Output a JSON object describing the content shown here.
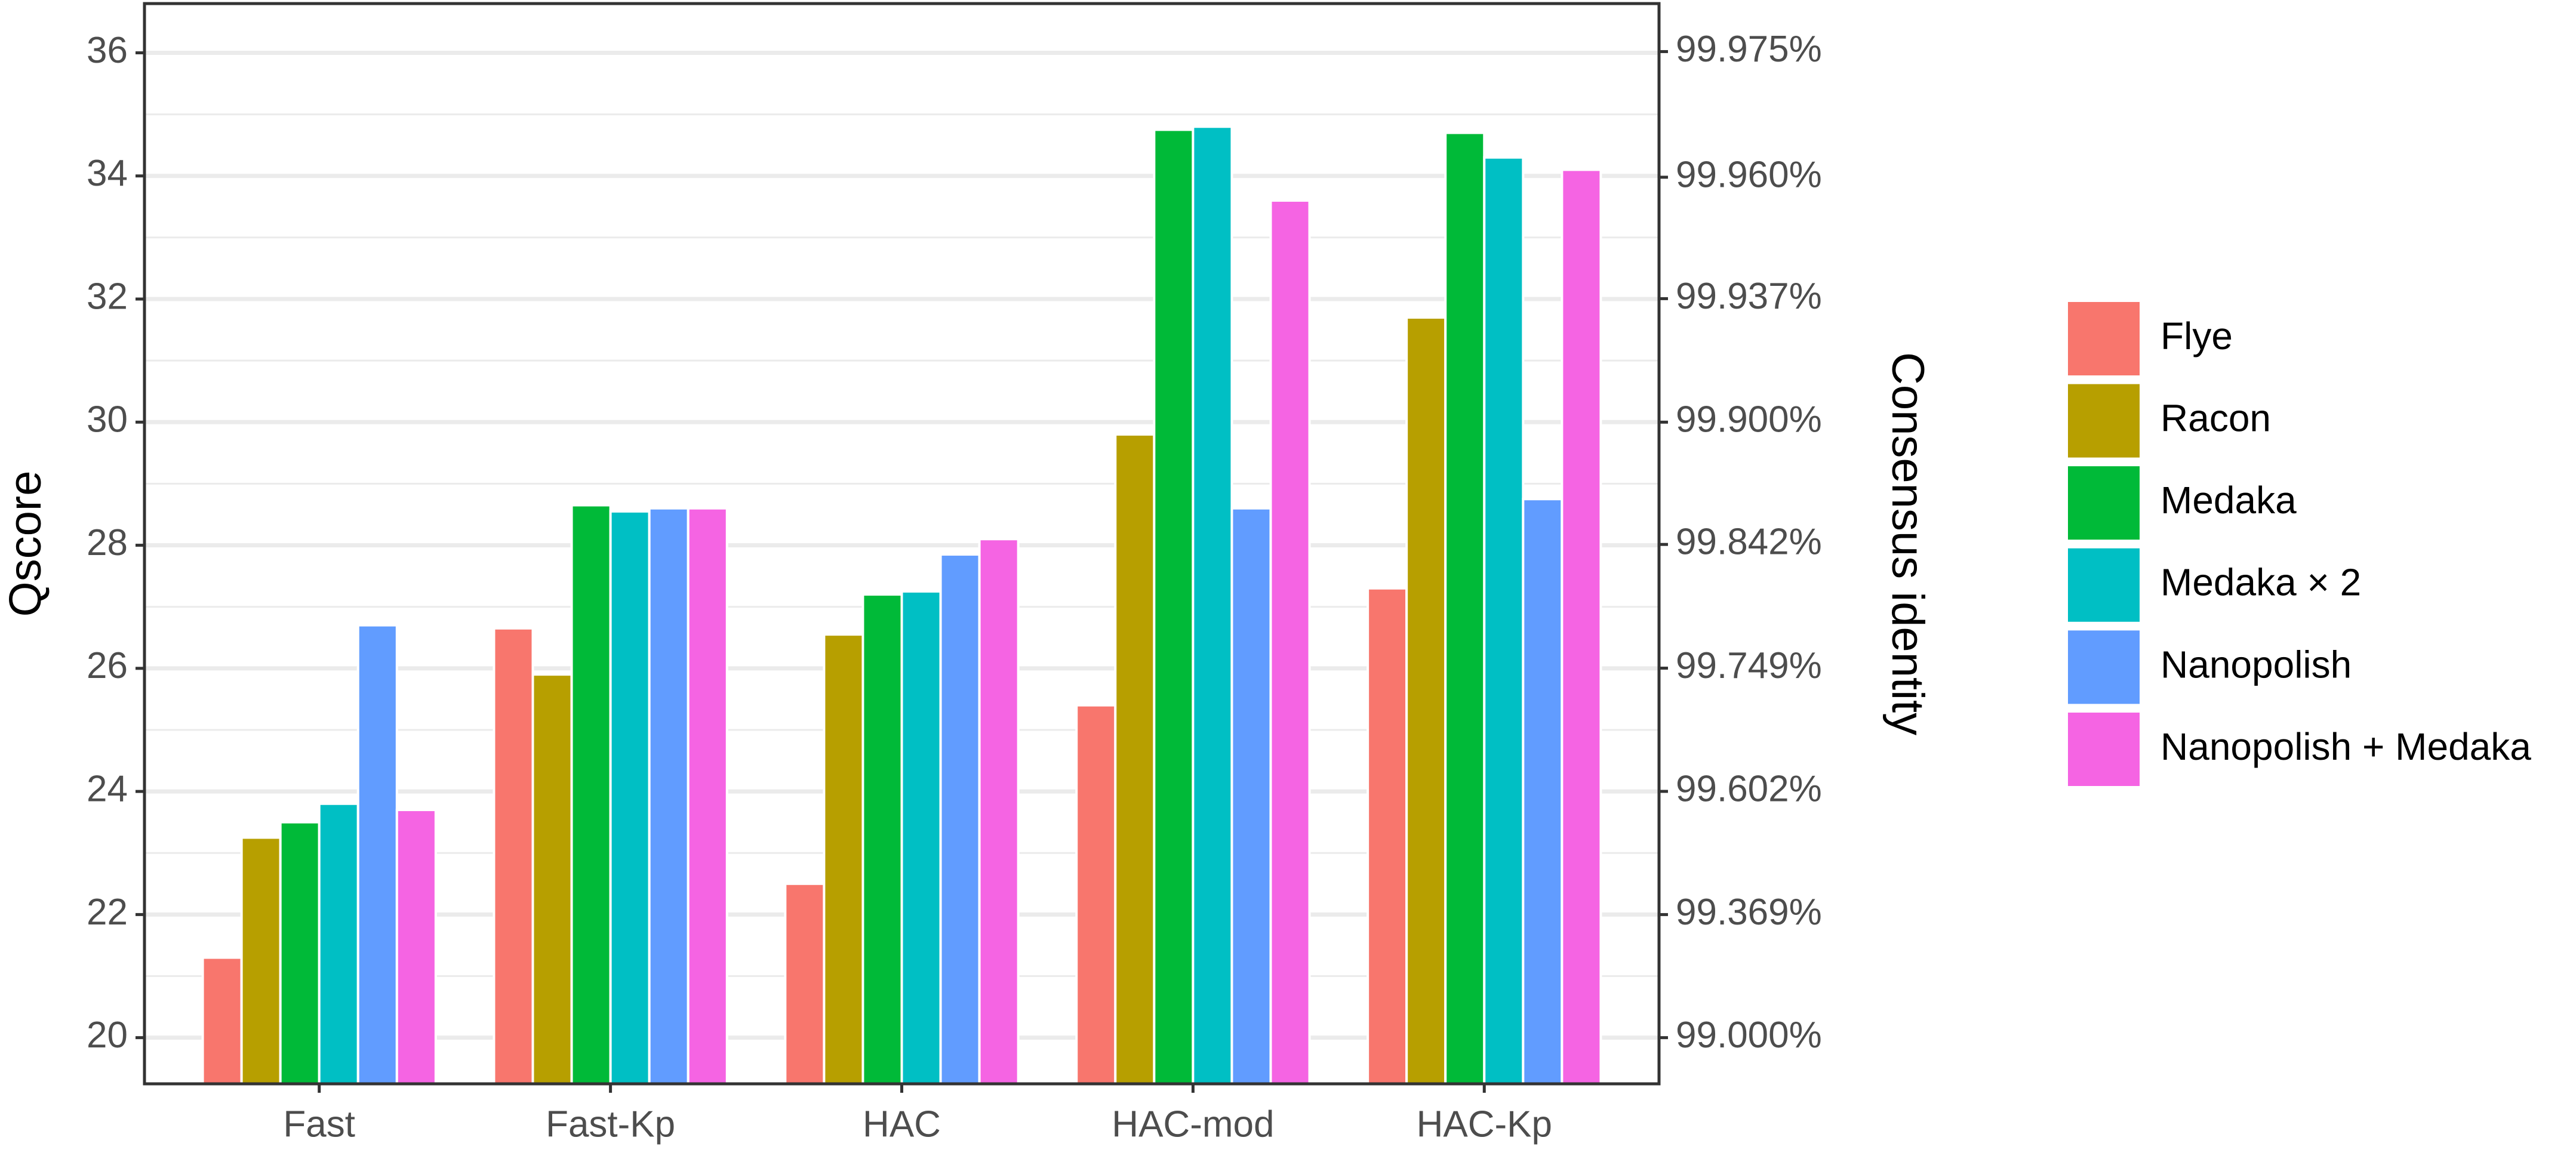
{
  "chart_data": {
    "type": "bar",
    "ylabel": "Qscore",
    "y2label": "Consensus identity",
    "categories": [
      "Fast",
      "Fast-Kp",
      "HAC",
      "HAC-mod",
      "HAC-Kp"
    ],
    "series": [
      {
        "name": "Flye",
        "color": "#F8766D",
        "values": [
          21.3,
          26.65,
          22.5,
          25.4,
          27.3
        ]
      },
      {
        "name": "Racon",
        "color": "#B79F00",
        "values": [
          23.25,
          25.9,
          26.55,
          29.8,
          31.7
        ]
      },
      {
        "name": "Medaka",
        "color": "#00BA38",
        "values": [
          23.5,
          28.65,
          27.2,
          34.75,
          34.7
        ]
      },
      {
        "name": "Medaka × 2",
        "color": "#00BFC4",
        "values": [
          23.8,
          28.55,
          27.25,
          34.8,
          34.3
        ]
      },
      {
        "name": "Nanopolish",
        "color": "#619CFF",
        "values": [
          26.7,
          28.6,
          27.85,
          28.6,
          28.75
        ]
      },
      {
        "name": "Nanopolish + Medaka",
        "color": "#F564E3",
        "values": [
          23.7,
          28.6,
          28.1,
          33.6,
          34.1
        ]
      }
    ],
    "ylim": [
      19.25,
      36.8
    ],
    "yticks": [
      20,
      22,
      24,
      26,
      28,
      30,
      32,
      34,
      36
    ],
    "y2lim": [
      98.8115,
      99.97911
    ],
    "y2scale": "phred",
    "y2ticks": [
      {
        "value": 99.0,
        "label": "99.000%"
      },
      {
        "value": 99.369,
        "label": "99.369%"
      },
      {
        "value": 99.602,
        "label": "99.602%"
      },
      {
        "value": 99.749,
        "label": "99.749%"
      },
      {
        "value": 99.842,
        "label": "99.842%"
      },
      {
        "value": 99.9,
        "label": "99.900%"
      },
      {
        "value": 99.937,
        "label": "99.937%"
      },
      {
        "value": 99.96,
        "label": "99.960%"
      },
      {
        "value": 99.975,
        "label": "99.975%"
      }
    ],
    "grid": true,
    "legend": "right"
  }
}
